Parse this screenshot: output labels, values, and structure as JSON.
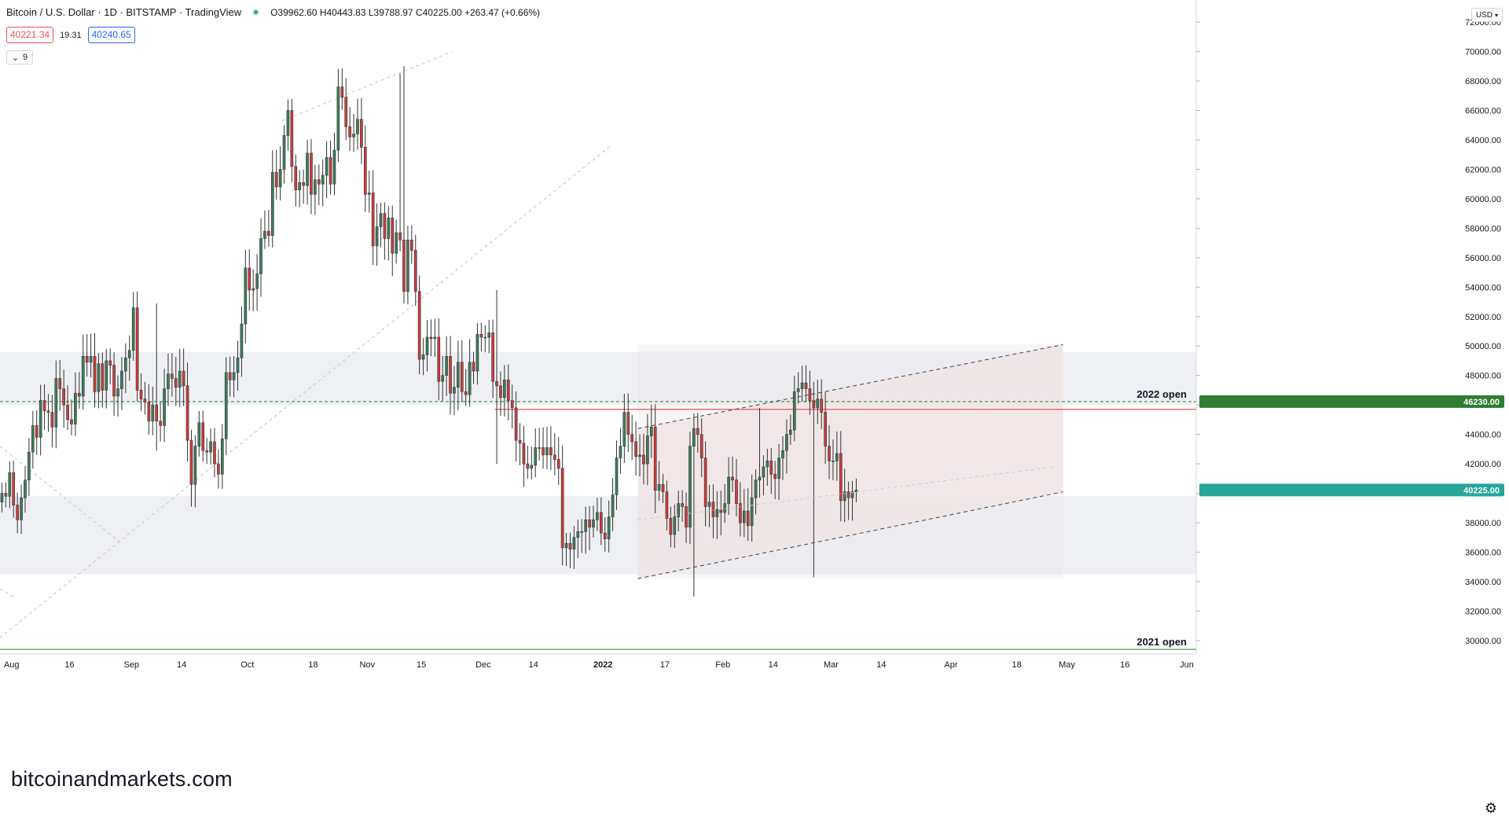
{
  "header": {
    "symbol": "Bitcoin / U.S. Dollar · 1D · BITSTAMP · TradingView",
    "ohlc": "O39962.60 H40443.83 L39788.97 C40225.00 +263.47 (+0.66%)",
    "bid": "40221.34",
    "spread": "19.31",
    "ask": "40240.65",
    "indicator_button": "9",
    "currency": "USD"
  },
  "watermark": "bitcoinandmarkets.com",
  "colors": {
    "up": "#3c7d5c",
    "down": "#cf3b3b",
    "zone": "#eef0f4",
    "channel_fill": "#f3e3e6",
    "hline_red": "#ef5350",
    "hline_green": "#2e7d32",
    "last_price": "#26a69a"
  },
  "chart_data": {
    "type": "candlestick",
    "title": "Bitcoin / U.S. Dollar · 1D · BITSTAMP · TradingView",
    "y_axis": {
      "ticks": [
        "72000.00",
        "70000.00",
        "68000.00",
        "66000.00",
        "64000.00",
        "62000.00",
        "60000.00",
        "58000.00",
        "56000.00",
        "54000.00",
        "52000.00",
        "50000.00",
        "48000.00",
        "46000.00",
        "44000.00",
        "42000.00",
        "40000.00",
        "38000.00",
        "36000.00",
        "34000.00",
        "32000.00",
        "30000.00"
      ],
      "range": [
        29300,
        73500
      ],
      "last_price_label": "40225.00",
      "level_label": "46230.00"
    },
    "x_axis": {
      "range": [
        "2021-07-29",
        "2022-06-01"
      ],
      "ticks": [
        {
          "date": "2021-08-01",
          "label": "Aug"
        },
        {
          "date": "2021-08-16",
          "label": "16"
        },
        {
          "date": "2021-09-01",
          "label": "Sep"
        },
        {
          "date": "2021-09-14",
          "label": "14"
        },
        {
          "date": "2021-10-01",
          "label": "Oct"
        },
        {
          "date": "2021-10-18",
          "label": "18"
        },
        {
          "date": "2021-11-01",
          "label": "Nov"
        },
        {
          "date": "2021-11-15",
          "label": "15"
        },
        {
          "date": "2021-12-01",
          "label": "Dec"
        },
        {
          "date": "2021-12-14",
          "label": "14"
        },
        {
          "date": "2022-01-01",
          "label": "2022"
        },
        {
          "date": "2022-01-17",
          "label": "17"
        },
        {
          "date": "2022-02-01",
          "label": "Feb"
        },
        {
          "date": "2022-02-14",
          "label": "14"
        },
        {
          "date": "2022-03-01",
          "label": "Mar"
        },
        {
          "date": "2022-03-14",
          "label": "14"
        },
        {
          "date": "2022-04-01",
          "label": "Apr"
        },
        {
          "date": "2022-04-18",
          "label": "18"
        },
        {
          "date": "2022-05-01",
          "label": "May"
        },
        {
          "date": "2022-05-16",
          "label": "16"
        },
        {
          "date": "2022-06-01",
          "label": "Jun"
        }
      ]
    },
    "candles_start": "2021-07-29",
    "closes": [
      40000,
      39800,
      41400,
      39200,
      38200,
      39700,
      40900,
      42800,
      44600,
      43800,
      46300,
      45600,
      45500,
      44500,
      47800,
      47100,
      46000,
      45000,
      44700,
      46800,
      46600,
      49300,
      48900,
      49300,
      46900,
      48800,
      47000,
      49000,
      48700,
      46600,
      47100,
      48300,
      49200,
      49700,
      52600,
      47000,
      46400,
      46200,
      44900,
      46000,
      44900,
      44600,
      47100,
      48100,
      47800,
      47200,
      48300,
      47300,
      43600,
      40600,
      43200,
      44800,
      42900,
      42800,
      43500,
      42000,
      41300,
      43700,
      48200,
      47700,
      48200,
      49200,
      51500,
      55300,
      53800,
      53900,
      54900,
      57300,
      57800,
      57500,
      61800,
      60800,
      62000,
      64300,
      66000,
      62200,
      60600,
      61100,
      60900,
      63100,
      60300,
      61300,
      61000,
      61600,
      62800,
      61000,
      63300,
      67600,
      66900,
      64900,
      64200,
      64400,
      65400,
      63500,
      60300,
      60400,
      56800,
      58100,
      59000,
      57300,
      58700,
      56300,
      57700,
      57200,
      53700,
      57200,
      56500,
      53700,
      49100,
      49400,
      50600,
      50500,
      50600,
      47600,
      48000,
      49300,
      46800,
      47200,
      48900,
      46900,
      46700,
      48900,
      48300,
      50800,
      50600,
      50600,
      50900,
      47600,
      47300,
      46500,
      47700,
      46300,
      45800,
      43600,
      43400,
      42000,
      41700,
      41900,
      43100,
      43100,
      42600,
      43100,
      42600,
      42300,
      41700,
      36300,
      36600,
      36200,
      37000,
      37400,
      37400,
      38200,
      37700,
      38200,
      38700,
      37300,
      36900,
      38400,
      39900,
      42400,
      43200,
      45500,
      44000,
      43500,
      42500,
      42600,
      42000,
      43900,
      44500,
      40200,
      40600,
      40100,
      38300,
      37200,
      38400,
      39300,
      39100,
      37700,
      43200,
      44400,
      44000,
      42400,
      39100,
      39400,
      38400,
      38900,
      38700,
      39300,
      41100,
      40900,
      39300,
      38000,
      38800,
      37800,
      39700,
      40900,
      41100,
      41800,
      42200,
      41300,
      41000,
      42400,
      42900,
      44000,
      44300,
      46900,
      47100,
      47500,
      47100,
      46300,
      45800,
      46400,
      45500,
      43200,
      42200,
      42200,
      42700,
      39500,
      40100,
      39700,
      40100,
      40225
    ],
    "wick_highs": {
      "2021-09-07": 52900,
      "2021-11-10": 69000,
      "2021-11-09": 68500,
      "2021-12-04": 53800,
      "2022-03-28": 48200,
      "2022-02-10": 45800
    },
    "wick_lows": {
      "2021-09-07": 42900,
      "2021-12-04": 42000,
      "2022-01-24": 33000,
      "2022-02-24": 34300
    },
    "zones": [
      {
        "from": 46000,
        "to": 49600
      },
      {
        "from": 34500,
        "to": 39800
      }
    ],
    "horizontal_levels": [
      {
        "price": 46230,
        "label": "2022 open",
        "style": "dashed"
      },
      {
        "price": 45700,
        "from": "2021-12-04",
        "style": "solid"
      },
      {
        "price": 29400,
        "label": "2021 open",
        "style": "solid"
      }
    ],
    "channel": {
      "upper": [
        {
          "date": "2022-01-10",
          "price": 44400
        },
        {
          "date": "2022-04-30",
          "price": 50100
        }
      ],
      "lower": [
        {
          "date": "2022-01-10",
          "price": 34200
        },
        {
          "date": "2022-04-30",
          "price": 40100
        }
      ],
      "mid": [
        {
          "date": "2022-01-10",
          "price": 38200
        },
        {
          "date": "2022-04-28",
          "price": 41800
        }
      ],
      "shade_from": "2022-01-10",
      "shade_to": "2022-04-30"
    },
    "trendlines": [
      {
        "from": {
          "date": "2021-10-10",
          "price": 65300
        },
        "to": {
          "date": "2021-11-23",
          "price": 70000
        }
      },
      {
        "from": {
          "date": "2021-07-29",
          "price": 30200
        },
        "to": {
          "date": "2022-01-03",
          "price": 63600
        }
      },
      {
        "from": {
          "date": "2021-07-29",
          "price": 43200
        },
        "to": {
          "date": "2021-08-29",
          "price": 36700
        }
      },
      {
        "from": {
          "date": "2021-07-29",
          "price": 33500
        },
        "to": {
          "date": "2021-08-02",
          "price": 32900
        }
      }
    ]
  }
}
